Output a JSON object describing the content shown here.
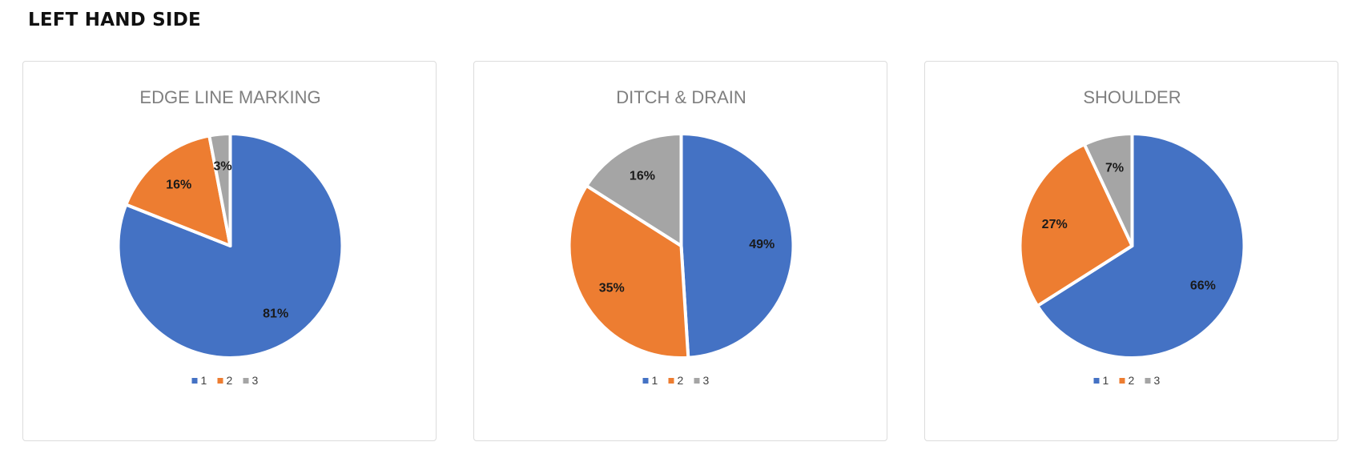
{
  "page": {
    "section_title": "LEFT HAND SIDE"
  },
  "colors": {
    "1": "#4472C4",
    "2": "#ED7D31",
    "3": "#A5A5A5"
  },
  "chart_data": [
    {
      "type": "pie",
      "title": "EDGE LINE MARKING",
      "categories": [
        "1",
        "2",
        "3"
      ],
      "values": [
        81,
        16,
        3
      ],
      "labels": [
        "81%",
        "16%",
        "3%"
      ],
      "legend": "bottom"
    },
    {
      "type": "pie",
      "title": "DITCH & DRAIN",
      "categories": [
        "1",
        "2",
        "3"
      ],
      "values": [
        49,
        35,
        16
      ],
      "labels": [
        "49%",
        "35%",
        "16%"
      ],
      "legend": "bottom"
    },
    {
      "type": "pie",
      "title": "SHOULDER",
      "categories": [
        "1",
        "2",
        "3"
      ],
      "values": [
        66,
        27,
        7
      ],
      "labels": [
        "66%",
        "27%",
        "7%"
      ],
      "legend": "bottom"
    }
  ]
}
